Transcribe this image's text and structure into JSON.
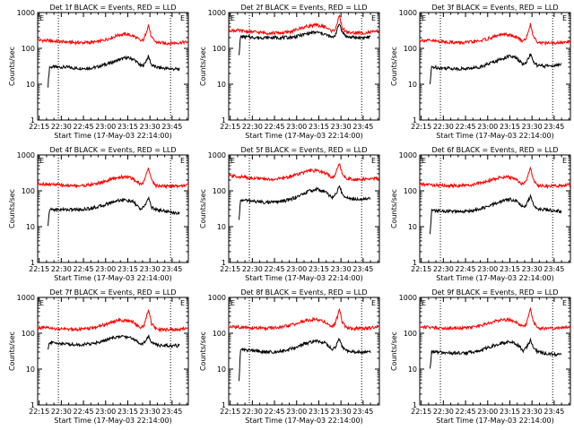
{
  "x_tick_labels": [
    "22:15",
    "22:30",
    "22:45",
    "23:00",
    "23:15",
    "23:30",
    "23:45"
  ],
  "y_tick_labels": [
    "1",
    "10",
    "100",
    "1000"
  ],
  "ylabel": "Counts/sec",
  "xlabel": "Start Time (17-May-03 22:14:00)",
  "colors": {
    "events": "#000000",
    "lld": "#ff0000",
    "axes": "#000000",
    "background": "#ffffff"
  },
  "panel_markers": {
    "left": "E",
    "right": "E"
  },
  "chart_data": [
    {
      "type": "line",
      "title": "Det 1f BLACK = Events, RED = LLD",
      "xlabel": "Start Time (17-May-03 22:14:00)",
      "ylabel": "Counts/sec",
      "x_unit": "minutes after 22:14",
      "xlim": [
        0,
        102
      ],
      "ylim": [
        1,
        1000
      ],
      "y_scale": "log",
      "vertical_dotted_lines": [
        14,
        90
      ],
      "series": [
        {
          "name": "Events",
          "color": "#000000",
          "x": [
            7,
            8,
            10,
            15,
            20,
            25,
            30,
            35,
            40,
            45,
            50,
            55,
            60,
            65,
            70,
            72,
            75,
            77,
            80,
            85,
            90,
            96
          ],
          "values": [
            9,
            30,
            30,
            30,
            30,
            28,
            28,
            28,
            30,
            35,
            40,
            48,
            55,
            50,
            32,
            35,
            60,
            35,
            30,
            28,
            27,
            26
          ]
        },
        {
          "name": "LLD",
          "color": "#ff0000",
          "x": [
            0,
            5,
            10,
            15,
            20,
            25,
            30,
            35,
            40,
            45,
            50,
            55,
            60,
            65,
            70,
            72,
            75,
            77,
            80,
            85,
            90,
            96,
            102
          ],
          "values": [
            170,
            165,
            160,
            155,
            150,
            145,
            145,
            145,
            150,
            170,
            200,
            240,
            250,
            220,
            160,
            180,
            460,
            200,
            150,
            140,
            140,
            145,
            150
          ]
        }
      ]
    },
    {
      "type": "line",
      "title": "Det 2f BLACK = Events, RED = LLD",
      "xlabel": "Start Time (17-May-03 22:14:00)",
      "ylabel": "Counts/sec",
      "x_unit": "minutes after 22:14",
      "xlim": [
        0,
        102
      ],
      "ylim": [
        1,
        1000
      ],
      "y_scale": "log",
      "vertical_dotted_lines": [
        14,
        90
      ],
      "series": [
        {
          "name": "Events",
          "color": "#000000",
          "x": [
            7,
            8,
            10,
            15,
            20,
            25,
            30,
            35,
            40,
            45,
            50,
            55,
            60,
            65,
            70,
            72,
            75,
            77,
            80,
            85,
            90,
            96
          ],
          "values": [
            70,
            210,
            210,
            205,
            200,
            200,
            200,
            200,
            200,
            210,
            240,
            270,
            280,
            250,
            200,
            230,
            500,
            280,
            210,
            200,
            200,
            205
          ]
        },
        {
          "name": "LLD",
          "color": "#ff0000",
          "x": [
            0,
            5,
            10,
            15,
            20,
            25,
            30,
            35,
            40,
            45,
            50,
            55,
            60,
            65,
            70,
            72,
            75,
            77,
            80,
            85,
            90,
            96,
            102
          ],
          "values": [
            320,
            315,
            300,
            290,
            280,
            270,
            270,
            270,
            280,
            320,
            380,
            430,
            440,
            400,
            300,
            340,
            800,
            360,
            280,
            270,
            270,
            280,
            300
          ]
        }
      ]
    },
    {
      "type": "line",
      "title": "Det 3f BLACK = Events, RED = LLD",
      "xlabel": "Start Time (17-May-03 22:14:00)",
      "ylabel": "Counts/sec",
      "x_unit": "minutes after 22:14",
      "xlim": [
        0,
        102
      ],
      "ylim": [
        1,
        1000
      ],
      "y_scale": "log",
      "vertical_dotted_lines": [
        14,
        90
      ],
      "series": [
        {
          "name": "Events",
          "color": "#000000",
          "x": [
            7,
            8,
            10,
            15,
            20,
            25,
            30,
            35,
            40,
            45,
            50,
            55,
            60,
            65,
            70,
            72,
            75,
            77,
            80,
            85,
            90,
            96
          ],
          "values": [
            10,
            30,
            30,
            28,
            28,
            27,
            27,
            28,
            30,
            35,
            42,
            50,
            60,
            55,
            35,
            40,
            70,
            40,
            33,
            32,
            33,
            35
          ]
        },
        {
          "name": "LLD",
          "color": "#ff0000",
          "x": [
            0,
            5,
            10,
            15,
            20,
            25,
            30,
            35,
            40,
            45,
            50,
            55,
            60,
            65,
            70,
            72,
            75,
            77,
            80,
            85,
            90,
            96,
            102
          ],
          "values": [
            170,
            165,
            160,
            155,
            150,
            145,
            145,
            150,
            160,
            180,
            210,
            240,
            240,
            210,
            160,
            190,
            480,
            210,
            150,
            140,
            140,
            145,
            150
          ]
        }
      ]
    },
    {
      "type": "line",
      "title": "Det 4f BLACK = Events, RED = LLD",
      "xlabel": "Start Time (17-May-03 22:14:00)",
      "ylabel": "Counts/sec",
      "x_unit": "minutes after 22:14",
      "xlim": [
        0,
        102
      ],
      "ylim": [
        1,
        1000
      ],
      "y_scale": "log",
      "vertical_dotted_lines": [
        14,
        90
      ],
      "series": [
        {
          "name": "Events",
          "color": "#000000",
          "x": [
            7,
            8,
            10,
            15,
            20,
            25,
            30,
            35,
            40,
            45,
            50,
            55,
            60,
            65,
            70,
            72,
            75,
            77,
            80,
            85,
            90,
            96
          ],
          "values": [
            10,
            30,
            30,
            30,
            30,
            30,
            30,
            32,
            35,
            40,
            48,
            55,
            55,
            48,
            30,
            35,
            65,
            35,
            30,
            28,
            25,
            24
          ]
        },
        {
          "name": "LLD",
          "color": "#ff0000",
          "x": [
            0,
            5,
            10,
            15,
            20,
            25,
            30,
            35,
            40,
            45,
            50,
            55,
            60,
            65,
            70,
            72,
            75,
            77,
            80,
            85,
            90,
            96,
            102
          ],
          "values": [
            160,
            155,
            150,
            145,
            140,
            140,
            140,
            145,
            160,
            180,
            210,
            240,
            250,
            210,
            150,
            180,
            470,
            200,
            140,
            135,
            135,
            140,
            150
          ]
        }
      ]
    },
    {
      "type": "line",
      "title": "Det 5f BLACK = Events, RED = LLD",
      "xlabel": "Start Time (17-May-03 22:14:00)",
      "ylabel": "Counts/sec",
      "x_unit": "minutes after 22:14",
      "xlim": [
        0,
        102
      ],
      "ylim": [
        1,
        1000
      ],
      "y_scale": "log",
      "vertical_dotted_lines": [
        14,
        90
      ],
      "series": [
        {
          "name": "Events",
          "color": "#000000",
          "x": [
            7,
            8,
            10,
            15,
            20,
            25,
            30,
            35,
            40,
            45,
            50,
            55,
            60,
            65,
            70,
            72,
            75,
            77,
            80,
            85,
            90,
            96
          ],
          "values": [
            15,
            55,
            55,
            52,
            50,
            48,
            48,
            50,
            55,
            65,
            80,
            100,
            110,
            95,
            65,
            75,
            130,
            80,
            65,
            60,
            60,
            62
          ]
        },
        {
          "name": "LLD",
          "color": "#ff0000",
          "x": [
            0,
            5,
            10,
            15,
            20,
            25,
            30,
            35,
            40,
            45,
            50,
            55,
            60,
            65,
            70,
            72,
            75,
            77,
            80,
            85,
            90,
            96,
            102
          ],
          "values": [
            260,
            255,
            240,
            230,
            220,
            210,
            210,
            220,
            240,
            280,
            320,
            360,
            360,
            320,
            240,
            280,
            580,
            300,
            220,
            210,
            210,
            215,
            230
          ]
        }
      ]
    },
    {
      "type": "line",
      "title": "Det 6f BLACK = Events, RED = LLD",
      "xlabel": "Start Time (17-May-03 22:14:00)",
      "ylabel": "Counts/sec",
      "x_unit": "minutes after 22:14",
      "xlim": [
        0,
        102
      ],
      "ylim": [
        1,
        1000
      ],
      "y_scale": "log",
      "vertical_dotted_lines": [
        14,
        90
      ],
      "series": [
        {
          "name": "Events",
          "color": "#000000",
          "x": [
            7,
            8,
            10,
            15,
            20,
            25,
            30,
            35,
            40,
            45,
            50,
            55,
            60,
            65,
            70,
            72,
            75,
            77,
            80,
            85,
            90,
            96
          ],
          "values": [
            6,
            28,
            28,
            27,
            27,
            26,
            26,
            28,
            30,
            35,
            42,
            50,
            58,
            55,
            35,
            40,
            70,
            40,
            32,
            30,
            28,
            27
          ]
        },
        {
          "name": "LLD",
          "color": "#ff0000",
          "x": [
            0,
            5,
            10,
            15,
            20,
            25,
            30,
            35,
            40,
            45,
            50,
            55,
            60,
            65,
            70,
            72,
            75,
            77,
            80,
            85,
            90,
            96,
            102
          ],
          "values": [
            150,
            150,
            145,
            140,
            140,
            140,
            140,
            145,
            160,
            180,
            210,
            240,
            240,
            210,
            150,
            180,
            450,
            200,
            140,
            135,
            135,
            140,
            150
          ]
        }
      ]
    },
    {
      "type": "line",
      "title": "Det 7f BLACK = Events, RED = LLD",
      "xlabel": "Start Time (17-May-03 22:14:00)",
      "ylabel": "Counts/sec",
      "x_unit": "minutes after 22:14",
      "xlim": [
        0,
        102
      ],
      "ylim": [
        1,
        1000
      ],
      "y_scale": "log",
      "vertical_dotted_lines": [
        14,
        90
      ],
      "series": [
        {
          "name": "Events",
          "color": "#000000",
          "x": [
            7,
            8,
            10,
            15,
            20,
            25,
            30,
            35,
            40,
            45,
            50,
            55,
            60,
            65,
            70,
            72,
            75,
            77,
            80,
            85,
            90,
            96
          ],
          "values": [
            35,
            55,
            55,
            52,
            50,
            48,
            48,
            50,
            55,
            62,
            72,
            80,
            80,
            70,
            50,
            55,
            85,
            55,
            48,
            45,
            45,
            45
          ]
        },
        {
          "name": "LLD",
          "color": "#ff0000",
          "x": [
            0,
            5,
            10,
            15,
            20,
            25,
            30,
            35,
            40,
            45,
            50,
            55,
            60,
            65,
            70,
            72,
            75,
            77,
            80,
            85,
            90,
            96,
            102
          ],
          "values": [
            140,
            140,
            135,
            130,
            130,
            130,
            130,
            135,
            150,
            170,
            200,
            230,
            230,
            200,
            140,
            170,
            460,
            190,
            130,
            125,
            125,
            130,
            135
          ]
        }
      ]
    },
    {
      "type": "line",
      "title": "Det 8f BLACK = Events, RED = LLD",
      "xlabel": "Start Time (17-May-03 22:14:00)",
      "ylabel": "Counts/sec",
      "x_unit": "minutes after 22:14",
      "xlim": [
        0,
        102
      ],
      "ylim": [
        1,
        1000
      ],
      "y_scale": "log",
      "vertical_dotted_lines": [
        14,
        90
      ],
      "series": [
        {
          "name": "Events",
          "color": "#000000",
          "x": [
            7,
            8,
            10,
            15,
            20,
            25,
            30,
            35,
            40,
            45,
            50,
            55,
            60,
            65,
            70,
            72,
            75,
            77,
            80,
            85,
            90,
            96
          ],
          "values": [
            5,
            35,
            35,
            33,
            32,
            30,
            30,
            32,
            35,
            40,
            48,
            55,
            60,
            55,
            35,
            40,
            70,
            40,
            33,
            30,
            30,
            30
          ]
        },
        {
          "name": "LLD",
          "color": "#ff0000",
          "x": [
            0,
            5,
            10,
            15,
            20,
            25,
            30,
            35,
            40,
            45,
            50,
            55,
            60,
            65,
            70,
            72,
            75,
            77,
            80,
            85,
            90,
            96,
            102
          ],
          "values": [
            150,
            150,
            145,
            140,
            140,
            140,
            140,
            145,
            160,
            180,
            210,
            240,
            240,
            210,
            150,
            180,
            450,
            200,
            140,
            135,
            135,
            140,
            150
          ]
        }
      ]
    },
    {
      "type": "line",
      "title": "Det 9f BLACK = Events, RED = LLD",
      "xlabel": "Start Time (17-May-03 22:14:00)",
      "ylabel": "Counts/sec",
      "x_unit": "minutes after 22:14",
      "xlim": [
        0,
        102
      ],
      "ylim": [
        1,
        1000
      ],
      "y_scale": "log",
      "vertical_dotted_lines": [
        14,
        90
      ],
      "series": [
        {
          "name": "Events",
          "color": "#000000",
          "x": [
            7,
            8,
            10,
            15,
            20,
            25,
            30,
            35,
            40,
            45,
            50,
            55,
            60,
            65,
            70,
            72,
            75,
            77,
            80,
            85,
            90,
            96
          ],
          "values": [
            10,
            30,
            30,
            29,
            28,
            28,
            28,
            30,
            32,
            38,
            45,
            52,
            58,
            52,
            33,
            38,
            65,
            38,
            30,
            28,
            26,
            25
          ]
        },
        {
          "name": "LLD",
          "color": "#ff0000",
          "x": [
            0,
            5,
            10,
            15,
            20,
            25,
            30,
            35,
            40,
            45,
            50,
            55,
            60,
            65,
            70,
            72,
            75,
            77,
            80,
            85,
            90,
            96,
            102
          ],
          "values": [
            150,
            150,
            145,
            140,
            140,
            140,
            140,
            145,
            160,
            180,
            210,
            240,
            240,
            210,
            150,
            180,
            460,
            200,
            140,
            135,
            135,
            140,
            150
          ]
        }
      ]
    }
  ]
}
